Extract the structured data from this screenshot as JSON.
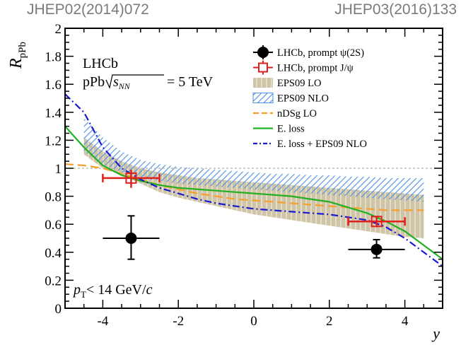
{
  "references": {
    "left": "JHEP02(2014)072",
    "right": "JHEP03(2016)133"
  },
  "annotations": {
    "experiment": "LHCb",
    "energy_prefix": "pPb",
    "energy_sqrt": "s",
    "energy_sub": "NN",
    "energy_value": "= 5 TeV",
    "cut_p": "p",
    "cut_sub": "T",
    "cut_text": "< 14 GeV/",
    "cut_c": "c"
  },
  "chart_data": {
    "type": "scatter",
    "xlabel": "y",
    "ylabel": "R",
    "ylabel_sub": "pPb",
    "xlim": [
      -5.0,
      5.0
    ],
    "ylim": [
      0,
      2
    ],
    "xticks": [
      -4,
      -2,
      0,
      2,
      4
    ],
    "yticks": [
      0,
      0.2,
      0.4,
      0.6,
      0.8,
      1,
      1.2,
      1.4,
      1.6,
      1.8,
      2
    ],
    "xtick_labels": [
      "-4",
      "-2",
      "0",
      "2",
      "4"
    ],
    "ytick_labels": [
      "0",
      "0.2",
      "0.4",
      "0.6",
      "0.8",
      "1",
      "1.2",
      "1.4",
      "1.6",
      "1.8",
      "2"
    ],
    "reference_line": 1.0,
    "colors": {
      "psi2s": "#000000",
      "jpsi": "#e0201b",
      "eps09_lo": "#cfc4a6",
      "eps09_nlo": "#4a90e2",
      "ndsg": "#f5a030",
      "eloss": "#22b022",
      "eloss_eps": "#1a1ad0"
    },
    "legend": [
      {
        "key": "psi2s",
        "label": "LHCb, prompt ψ(2S)"
      },
      {
        "key": "jpsi",
        "label": "LHCb, prompt J/ψ"
      },
      {
        "key": "eps09_lo",
        "label": "EPS09 LO"
      },
      {
        "key": "eps09_nlo",
        "label": "EPS09 NLO"
      },
      {
        "key": "ndsg",
        "label": "nDSg LO"
      },
      {
        "key": "eloss",
        "label": "E. loss"
      },
      {
        "key": "eloss_eps",
        "label": "E. loss + EPS09 NLO"
      }
    ],
    "points": {
      "psi2s": [
        {
          "x": -3.25,
          "y": 0.5,
          "xerr": 0.75,
          "ylo": 0.35,
          "yhi": 0.66
        },
        {
          "x": 3.25,
          "y": 0.42,
          "xerr": 0.75,
          "ylo": 0.36,
          "yhi": 0.49
        }
      ],
      "jpsi": [
        {
          "x": -3.25,
          "y": 0.93,
          "xerr": 0.75,
          "ylo": 0.86,
          "yhi": 0.99
        },
        {
          "x": 3.25,
          "y": 0.62,
          "xerr": 0.75,
          "ylo": 0.58,
          "yhi": 0.66
        }
      ]
    },
    "bands": {
      "eps09_lo": {
        "x": [
          -4.5,
          -4.0,
          -3.5,
          -3.0,
          -2.5,
          -2.0,
          -1.5,
          -1.0,
          -0.5,
          0.0,
          0.5,
          1.0,
          1.5,
          2.0,
          2.5,
          3.0,
          3.5,
          4.0,
          4.5
        ],
        "upper": [
          1.22,
          1.12,
          1.05,
          1.0,
          0.97,
          0.95,
          0.93,
          0.92,
          0.91,
          0.9,
          0.89,
          0.88,
          0.87,
          0.86,
          0.85,
          0.84,
          0.83,
          0.82,
          0.81
        ],
        "lower": [
          1.1,
          1.0,
          0.95,
          0.89,
          0.83,
          0.79,
          0.76,
          0.73,
          0.7,
          0.67,
          0.65,
          0.63,
          0.61,
          0.59,
          0.57,
          0.55,
          0.53,
          0.51,
          0.5
        ]
      },
      "eps09_nlo": {
        "x": [
          -4.5,
          -4.0,
          -3.5,
          -3.0,
          -2.5,
          -2.0,
          -1.5,
          -1.0,
          -0.5,
          0.0,
          0.5,
          1.0,
          1.5,
          2.0,
          2.5,
          3.0,
          3.5,
          4.0,
          4.5
        ],
        "upper": [
          1.36,
          1.22,
          1.12,
          1.06,
          1.03,
          1.01,
          1.0,
          0.99,
          0.98,
          0.97,
          0.96,
          0.96,
          0.95,
          0.95,
          0.94,
          0.94,
          0.93,
          0.93,
          0.93
        ],
        "lower": [
          1.12,
          1.03,
          0.97,
          0.93,
          0.91,
          0.89,
          0.88,
          0.87,
          0.86,
          0.85,
          0.84,
          0.83,
          0.82,
          0.81,
          0.8,
          0.79,
          0.78,
          0.77,
          0.76
        ]
      }
    },
    "curves": {
      "ndsg": {
        "x": [
          -5.0,
          -4.5,
          -4.0,
          -3.5,
          -3.0,
          -2.5,
          -2.0,
          -1.5,
          -1.0,
          -0.5,
          0.0,
          0.5,
          1.0,
          1.5,
          2.0,
          2.5,
          3.0,
          3.5,
          4.0,
          4.5
        ],
        "y": [
          1.03,
          1.02,
          1.0,
          0.96,
          0.92,
          0.88,
          0.85,
          0.82,
          0.8,
          0.78,
          0.77,
          0.76,
          0.75,
          0.74,
          0.73,
          0.72,
          0.71,
          0.7,
          0.7,
          0.7
        ]
      },
      "eloss": {
        "x": [
          -5.0,
          -4.5,
          -4.0,
          -3.5,
          -3.0,
          -2.5,
          -2.0,
          -1.5,
          -1.0,
          -0.5,
          0.0,
          0.5,
          1.0,
          1.5,
          2.0,
          2.5,
          3.0,
          3.5,
          4.0,
          4.5,
          5.0
        ],
        "y": [
          1.3,
          1.15,
          1.02,
          0.95,
          0.91,
          0.88,
          0.86,
          0.85,
          0.84,
          0.83,
          0.82,
          0.81,
          0.8,
          0.78,
          0.76,
          0.72,
          0.68,
          0.62,
          0.55,
          0.45,
          0.35
        ]
      },
      "eloss_eps": {
        "x": [
          -5.0,
          -4.5,
          -4.0,
          -3.5,
          -3.0,
          -2.5,
          -2.0,
          -1.5,
          -1.0,
          -0.5,
          0.0,
          0.5,
          1.0,
          1.5,
          2.0,
          2.5,
          3.0,
          3.5,
          4.0,
          4.5,
          5.0
        ],
        "y": [
          1.53,
          1.4,
          1.15,
          1.0,
          0.92,
          0.86,
          0.82,
          0.78,
          0.75,
          0.73,
          0.71,
          0.7,
          0.69,
          0.68,
          0.67,
          0.65,
          0.63,
          0.58,
          0.5,
          0.4,
          0.3
        ]
      }
    }
  }
}
